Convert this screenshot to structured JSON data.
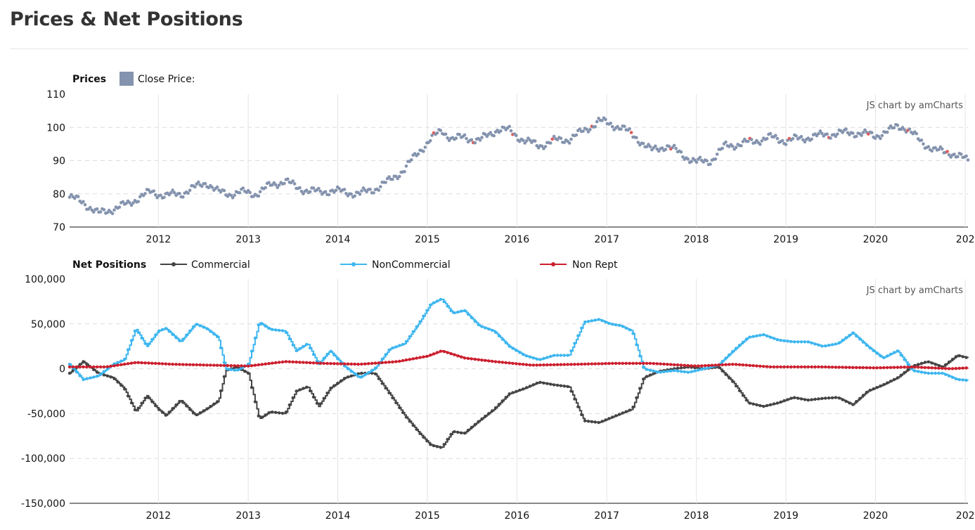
{
  "page": {
    "title": "Prices & Net Positions"
  },
  "credit": "JS chart by amCharts",
  "chart_data": [
    {
      "type": "scatter",
      "panel_title": "Prices",
      "legend": [
        {
          "name": "Close Price:",
          "color": "#8493ae"
        }
      ],
      "x_ticks": [
        "2012",
        "2013",
        "2014",
        "2015",
        "2016",
        "2017",
        "2018",
        "2019",
        "2020",
        "202"
      ],
      "y_ticks": [
        "110",
        "100",
        "90",
        "80",
        "70"
      ],
      "ylim": [
        70,
        110
      ],
      "xlim": [
        "2011-01-04",
        "2021-01-12"
      ],
      "grid": true,
      "legend_position": "top-left",
      "series": [
        {
          "name": "Close Price:",
          "color": "#8493ae",
          "highlight_color": "#e05a5a",
          "points": [
            [
              "2011-01-04",
              79
            ],
            [
              "2011-03-01",
              77.5
            ],
            [
              "2011-05-01",
              74
            ],
            [
              "2011-07-01",
              75.5
            ],
            [
              "2011-09-01",
              77
            ],
            [
              "2011-10-15",
              79
            ],
            [
              "2011-12-01",
              80.5
            ],
            [
              "2012-02-01",
              79.5
            ],
            [
              "2012-04-01",
              80
            ],
            [
              "2012-06-01",
              82
            ],
            [
              "2012-07-15",
              83.5
            ],
            [
              "2012-09-01",
              80.5
            ],
            [
              "2012-10-15",
              80
            ],
            [
              "2012-12-01",
              80.5
            ],
            [
              "2013-02-01",
              80
            ],
            [
              "2013-04-01",
              82.5
            ],
            [
              "2013-06-01",
              84
            ],
            [
              "2013-07-15",
              82
            ],
            [
              "2013-09-01",
              81
            ],
            [
              "2013-10-15",
              80.5
            ],
            [
              "2013-12-01",
              81
            ],
            [
              "2014-02-01",
              80.5
            ],
            [
              "2014-04-01",
              80
            ],
            [
              "2014-06-01",
              81.5
            ],
            [
              "2014-08-01",
              84
            ],
            [
              "2014-10-01",
              87.5
            ],
            [
              "2014-12-01",
              93
            ],
            [
              "2015-01-15",
              96.5
            ],
            [
              "2015-03-01",
              99
            ],
            [
              "2015-04-15",
              96.5
            ],
            [
              "2015-06-01",
              97
            ],
            [
              "2015-08-01",
              96
            ],
            [
              "2015-10-15",
              99.5
            ],
            [
              "2015-12-01",
              99
            ],
            [
              "2016-02-01",
              96
            ],
            [
              "2016-04-01",
              94.5
            ],
            [
              "2016-06-01",
              96
            ],
            [
              "2016-08-01",
              96.5
            ],
            [
              "2016-10-01",
              99
            ],
            [
              "2016-12-01",
              102
            ],
            [
              "2017-01-15",
              101
            ],
            [
              "2017-03-01",
              100
            ],
            [
              "2017-05-01",
              97
            ],
            [
              "2017-07-01",
              93
            ],
            [
              "2017-09-01",
              94.5
            ],
            [
              "2017-11-01",
              92
            ],
            [
              "2018-01-01",
              89.5
            ],
            [
              "2018-03-01",
              90
            ],
            [
              "2018-05-01",
              94.5
            ],
            [
              "2018-07-01",
              95
            ],
            [
              "2018-09-01",
              96
            ],
            [
              "2018-11-01",
              97
            ],
            [
              "2019-01-01",
              96
            ],
            [
              "2019-04-01",
              97
            ],
            [
              "2019-07-01",
              98
            ],
            [
              "2019-10-01",
              98.5
            ],
            [
              "2020-01-01",
              97.5
            ],
            [
              "2020-03-01",
              99
            ],
            [
              "2020-04-01",
              100.5
            ],
            [
              "2020-05-01",
              100
            ],
            [
              "2020-07-01",
              96
            ],
            [
              "2020-09-01",
              93
            ],
            [
              "2020-11-01",
              92.5
            ],
            [
              "2021-01-12",
              90
            ]
          ]
        }
      ]
    },
    {
      "type": "line",
      "panel_title": "Net Positions",
      "x_ticks": [
        "2012",
        "2013",
        "2014",
        "2015",
        "2016",
        "2017",
        "2018",
        "2019",
        "2020",
        "202"
      ],
      "y_ticks": [
        "100,000",
        "50,000",
        "0",
        "-50,000",
        "-100,000",
        "-150,000"
      ],
      "ylim": [
        -150000,
        100000
      ],
      "xlim": [
        "2011-01-04",
        "2021-01-12"
      ],
      "grid": true,
      "legend_position": "top-left",
      "series": [
        {
          "name": "Commercial",
          "color": "#444444",
          "points": [
            [
              "2011-01-04",
              -5000
            ],
            [
              "2011-03-01",
              8000
            ],
            [
              "2011-05-01",
              -5000
            ],
            [
              "2011-07-01",
              -10000
            ],
            [
              "2011-08-15",
              -22000
            ],
            [
              "2011-10-01",
              -48000
            ],
            [
              "2011-11-15",
              -30000
            ],
            [
              "2012-01-01",
              -45000
            ],
            [
              "2012-02-01",
              -52000
            ],
            [
              "2012-04-01",
              -35000
            ],
            [
              "2012-06-01",
              -52000
            ],
            [
              "2012-07-15",
              -45000
            ],
            [
              "2012-09-01",
              -36000
            ],
            [
              "2012-10-01",
              -2000
            ],
            [
              "2012-11-15",
              2000
            ],
            [
              "2013-01-01",
              -5000
            ],
            [
              "2013-02-15",
              -56000
            ],
            [
              "2013-04-01",
              -48000
            ],
            [
              "2013-06-01",
              -50000
            ],
            [
              "2013-07-15",
              -25000
            ],
            [
              "2013-09-01",
              -20000
            ],
            [
              "2013-10-15",
              -42000
            ],
            [
              "2013-12-01",
              -22000
            ],
            [
              "2014-02-01",
              -10000
            ],
            [
              "2014-04-01",
              -5000
            ],
            [
              "2014-06-01",
              -5000
            ],
            [
              "2014-08-01",
              -28000
            ],
            [
              "2014-10-01",
              -52000
            ],
            [
              "2014-12-01",
              -72000
            ],
            [
              "2015-01-15",
              -85000
            ],
            [
              "2015-03-01",
              -88000
            ],
            [
              "2015-04-15",
              -70000
            ],
            [
              "2015-06-01",
              -72000
            ],
            [
              "2015-08-01",
              -58000
            ],
            [
              "2015-10-01",
              -45000
            ],
            [
              "2015-12-01",
              -28000
            ],
            [
              "2016-02-01",
              -22000
            ],
            [
              "2016-04-01",
              -15000
            ],
            [
              "2016-06-01",
              -18000
            ],
            [
              "2016-08-01",
              -20000
            ],
            [
              "2016-10-01",
              -58000
            ],
            [
              "2016-12-01",
              -60000
            ],
            [
              "2017-01-15",
              -55000
            ],
            [
              "2017-03-01",
              -50000
            ],
            [
              "2017-04-15",
              -45000
            ],
            [
              "2017-06-01",
              -10000
            ],
            [
              "2017-08-01",
              -3000
            ],
            [
              "2017-10-01",
              0
            ],
            [
              "2017-12-01",
              2000
            ],
            [
              "2018-02-01",
              0
            ],
            [
              "2018-04-01",
              2000
            ],
            [
              "2018-06-01",
              -15000
            ],
            [
              "2018-08-01",
              -38000
            ],
            [
              "2018-10-01",
              -42000
            ],
            [
              "2018-12-01",
              -38000
            ],
            [
              "2019-02-01",
              -32000
            ],
            [
              "2019-04-01",
              -35000
            ],
            [
              "2019-06-01",
              -33000
            ],
            [
              "2019-08-01",
              -32000
            ],
            [
              "2019-10-01",
              -40000
            ],
            [
              "2019-12-01",
              -25000
            ],
            [
              "2020-02-01",
              -18000
            ],
            [
              "2020-04-01",
              -10000
            ],
            [
              "2020-06-01",
              3000
            ],
            [
              "2020-08-01",
              8000
            ],
            [
              "2020-10-01",
              2000
            ],
            [
              "2020-12-01",
              15000
            ],
            [
              "2021-01-12",
              12000
            ]
          ]
        },
        {
          "name": "NonCommercial",
          "color": "#3db6ef",
          "points": [
            [
              "2011-01-04",
              5000
            ],
            [
              "2011-03-01",
              -12000
            ],
            [
              "2011-05-01",
              -8000
            ],
            [
              "2011-07-01",
              5000
            ],
            [
              "2011-08-15",
              10000
            ],
            [
              "2011-10-01",
              45000
            ],
            [
              "2011-11-15",
              25000
            ],
            [
              "2012-01-01",
              42000
            ],
            [
              "2012-02-01",
              45000
            ],
            [
              "2012-04-01",
              30000
            ],
            [
              "2012-06-01",
              50000
            ],
            [
              "2012-07-15",
              45000
            ],
            [
              "2012-09-01",
              35000
            ],
            [
              "2012-10-01",
              0
            ],
            [
              "2012-11-15",
              -2000
            ],
            [
              "2013-01-01",
              5000
            ],
            [
              "2013-02-15",
              52000
            ],
            [
              "2013-04-01",
              44000
            ],
            [
              "2013-06-01",
              42000
            ],
            [
              "2013-07-15",
              20000
            ],
            [
              "2013-09-01",
              28000
            ],
            [
              "2013-10-15",
              5000
            ],
            [
              "2013-12-01",
              20000
            ],
            [
              "2014-02-01",
              2000
            ],
            [
              "2014-04-01",
              -10000
            ],
            [
              "2014-06-01",
              0
            ],
            [
              "2014-08-01",
              22000
            ],
            [
              "2014-10-01",
              28000
            ],
            [
              "2014-12-01",
              52000
            ],
            [
              "2015-01-15",
              72000
            ],
            [
              "2015-03-01",
              78000
            ],
            [
              "2015-04-15",
              62000
            ],
            [
              "2015-06-01",
              65000
            ],
            [
              "2015-08-01",
              48000
            ],
            [
              "2015-10-01",
              42000
            ],
            [
              "2015-12-01",
              25000
            ],
            [
              "2016-02-01",
              15000
            ],
            [
              "2016-04-01",
              10000
            ],
            [
              "2016-06-01",
              15000
            ],
            [
              "2016-08-01",
              15000
            ],
            [
              "2016-10-01",
              52000
            ],
            [
              "2016-12-01",
              55000
            ],
            [
              "2017-01-15",
              50000
            ],
            [
              "2017-03-01",
              48000
            ],
            [
              "2017-04-15",
              42000
            ],
            [
              "2017-06-01",
              0
            ],
            [
              "2017-08-01",
              -4000
            ],
            [
              "2017-10-01",
              -2000
            ],
            [
              "2017-12-01",
              -4000
            ],
            [
              "2018-02-01",
              0
            ],
            [
              "2018-04-01",
              4000
            ],
            [
              "2018-06-01",
              20000
            ],
            [
              "2018-08-01",
              35000
            ],
            [
              "2018-10-01",
              38000
            ],
            [
              "2018-12-01",
              32000
            ],
            [
              "2019-02-01",
              30000
            ],
            [
              "2019-04-01",
              30000
            ],
            [
              "2019-06-01",
              25000
            ],
            [
              "2019-08-01",
              28000
            ],
            [
              "2019-10-01",
              40000
            ],
            [
              "2019-12-01",
              25000
            ],
            [
              "2020-02-01",
              12000
            ],
            [
              "2020-04-01",
              20000
            ],
            [
              "2020-06-01",
              -2000
            ],
            [
              "2020-08-01",
              -5000
            ],
            [
              "2020-10-01",
              -5000
            ],
            [
              "2020-12-01",
              -12000
            ],
            [
              "2021-01-12",
              -13000
            ]
          ]
        },
        {
          "name": "Non Rept",
          "color": "#cc1f2e",
          "points": [
            [
              "2011-01-04",
              2000
            ],
            [
              "2011-06-01",
              2000
            ],
            [
              "2011-10-01",
              7000
            ],
            [
              "2012-03-01",
              5000
            ],
            [
              "2012-08-01",
              4000
            ],
            [
              "2013-01-01",
              3000
            ],
            [
              "2013-06-01",
              8000
            ],
            [
              "2013-11-01",
              6000
            ],
            [
              "2014-04-01",
              5000
            ],
            [
              "2014-09-01",
              8000
            ],
            [
              "2015-01-01",
              14000
            ],
            [
              "2015-03-01",
              20000
            ],
            [
              "2015-06-01",
              12000
            ],
            [
              "2015-10-01",
              8000
            ],
            [
              "2016-03-01",
              4000
            ],
            [
              "2016-09-01",
              5000
            ],
            [
              "2017-02-01",
              6000
            ],
            [
              "2017-07-01",
              6000
            ],
            [
              "2018-01-01",
              3000
            ],
            [
              "2018-06-01",
              5000
            ],
            [
              "2018-11-01",
              2000
            ],
            [
              "2019-06-01",
              2000
            ],
            [
              "2020-01-01",
              1000
            ],
            [
              "2020-06-01",
              2000
            ],
            [
              "2020-11-01",
              0
            ],
            [
              "2021-01-12",
              1000
            ]
          ]
        }
      ]
    }
  ]
}
